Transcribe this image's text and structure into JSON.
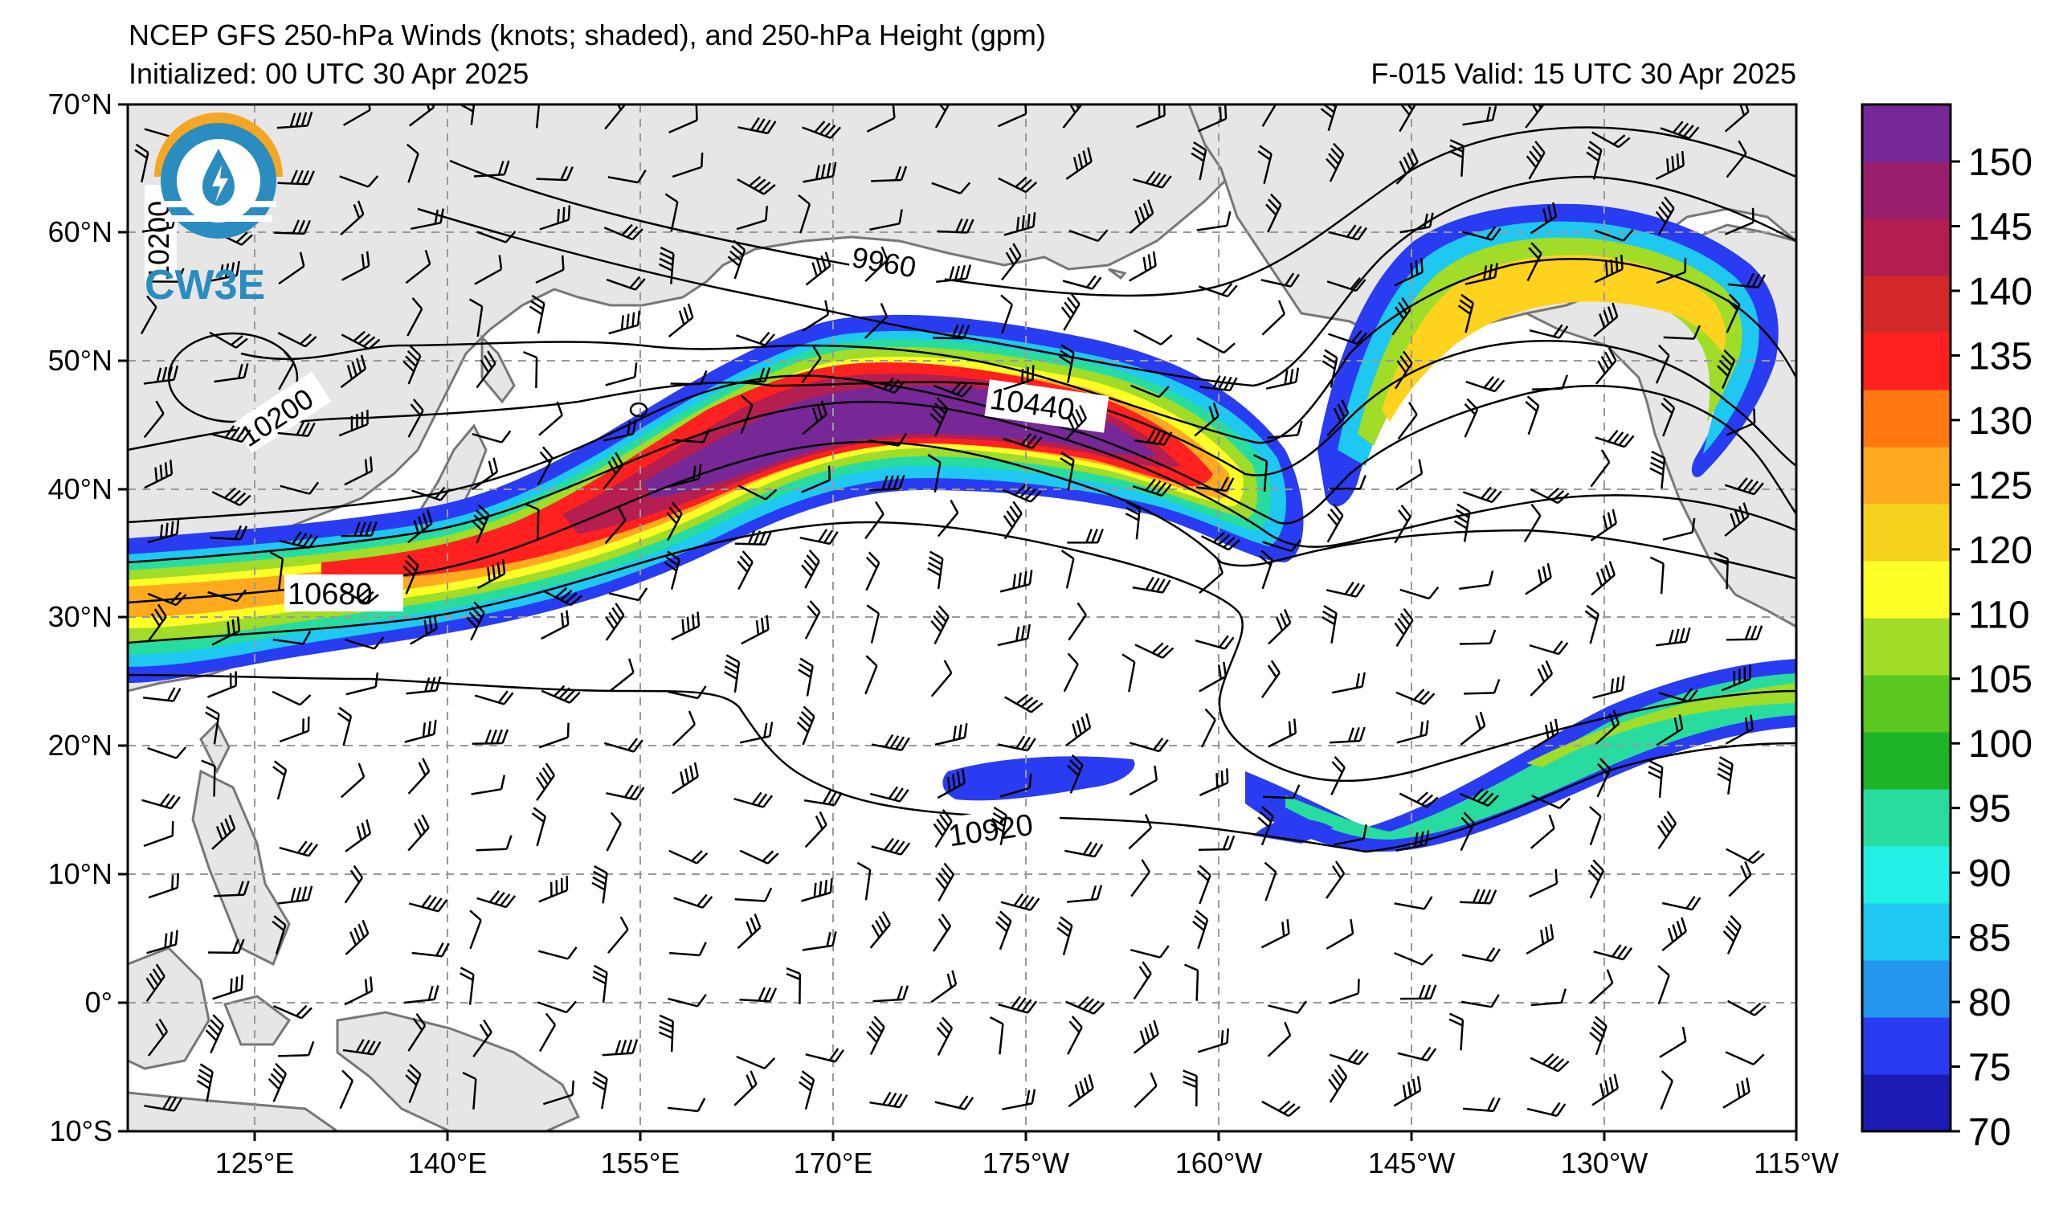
{
  "header": {
    "title": "NCEP GFS 250-hPa Winds (knots; shaded), and 250-hPa Height (gpm)",
    "initialized": "Initialized: 00 UTC 30 Apr 2025",
    "valid": "F-015  Valid: 15 UTC 30 Apr 2025"
  },
  "logo": {
    "text": "CW3E",
    "icon": "cw3e-logo-icon"
  },
  "axes": {
    "lat_labels": [
      "70°N",
      "60°N",
      "50°N",
      "40°N",
      "30°N",
      "20°N",
      "10°N",
      "0°",
      "10°S"
    ],
    "lon_labels": [
      "125°E",
      "140°E",
      "155°E",
      "170°E",
      "175°W",
      "160°W",
      "145°W",
      "130°W",
      "115°W"
    ]
  },
  "contour_labels": [
    "9960",
    "10200",
    "10440",
    "10680",
    "10920",
    "10200"
  ],
  "colorbar": {
    "ticks": [
      "150",
      "145",
      "140",
      "135",
      "130",
      "125",
      "120",
      "110",
      "105",
      "100",
      "95",
      "90",
      "85",
      "80",
      "75",
      "70"
    ],
    "colors": [
      "#1c1cb4",
      "#2a3cf2",
      "#2496ee",
      "#1ec8f0",
      "#22f0e6",
      "#28dca0",
      "#1eb428",
      "#5ac81e",
      "#a0dc28",
      "#ffff28",
      "#f5d21e",
      "#ffaa1e",
      "#ff7814",
      "#ff2020",
      "#d22828",
      "#b41e50",
      "#9a1e6e",
      "#782896"
    ]
  }
}
